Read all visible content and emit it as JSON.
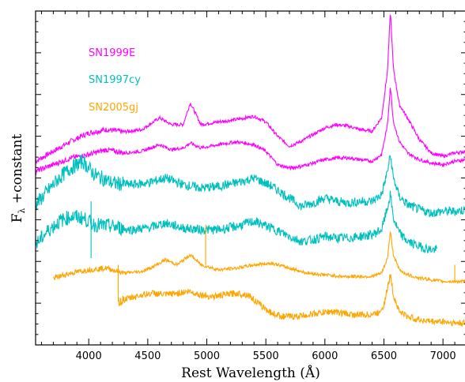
{
  "chart_data": {
    "type": "line",
    "title": "",
    "xlabel": "Rest Wavelength (Å)",
    "ylabel": "F_λ +constant",
    "ylabel_main": "F",
    "ylabel_sub": "λ",
    "ylabel_rest": " +constant",
    "xlim": [
      3550,
      7200
    ],
    "ylim": [
      0,
      1
    ],
    "xticks": [
      4000,
      4500,
      5000,
      5500,
      6000,
      6500,
      7000
    ],
    "xtick_labels": [
      "4000",
      "4500",
      "5000",
      "5500",
      "6000",
      "6500",
      "7000"
    ],
    "grid": false,
    "legend": "top-left",
    "series": [
      {
        "name": "SN1999E",
        "color": "#ff00ff",
        "x": [
          3550,
          3700,
          3850,
          4000,
          4150,
          4300,
          4450,
          4600,
          4700,
          4800,
          4860,
          4950,
          5100,
          5250,
          5400,
          5500,
          5600,
          5700,
          5800,
          5900,
          6000,
          6100,
          6200,
          6300,
          6400,
          6480,
          6530,
          6555,
          6580,
          6630,
          6700,
          6800,
          6900,
          7000,
          7100,
          7200
        ],
        "y": [
          0.55,
          0.58,
          0.61,
          0.635,
          0.645,
          0.638,
          0.645,
          0.68,
          0.66,
          0.66,
          0.725,
          0.66,
          0.668,
          0.675,
          0.685,
          0.668,
          0.625,
          0.595,
          0.61,
          0.63,
          0.65,
          0.66,
          0.655,
          0.645,
          0.64,
          0.68,
          0.82,
          1.0,
          0.83,
          0.72,
          0.68,
          0.615,
          0.575,
          0.565,
          0.575,
          0.58
        ]
      },
      {
        "name": "SN1999E",
        "color": "#ff00ff",
        "x": [
          3550,
          3700,
          3850,
          4000,
          4150,
          4300,
          4450,
          4600,
          4700,
          4800,
          4860,
          4950,
          5100,
          5250,
          5400,
          5500,
          5600,
          5700,
          5800,
          5900,
          6000,
          6100,
          6200,
          6300,
          6400,
          6480,
          6530,
          6555,
          6580,
          6630,
          6700,
          6800,
          6900,
          7000,
          7100,
          7200
        ],
        "y": [
          0.52,
          0.54,
          0.56,
          0.57,
          0.585,
          0.575,
          0.58,
          0.6,
          0.585,
          0.59,
          0.605,
          0.59,
          0.6,
          0.608,
          0.6,
          0.58,
          0.54,
          0.53,
          0.535,
          0.545,
          0.555,
          0.56,
          0.56,
          0.555,
          0.55,
          0.57,
          0.66,
          0.775,
          0.67,
          0.61,
          0.575,
          0.555,
          0.545,
          0.54,
          0.55,
          0.555
        ]
      },
      {
        "name": "SN1997cy",
        "color": "#00bfbf",
        "x": [
          3550,
          3650,
          3750,
          3850,
          3950,
          4050,
          4200,
          4350,
          4500,
          4650,
          4800,
          4950,
          5100,
          5250,
          5400,
          5550,
          5700,
          5800,
          5900,
          6000,
          6100,
          6200,
          6300,
          6400,
          6480,
          6530,
          6555,
          6580,
          6630,
          6700,
          6800,
          6900,
          7000,
          7100,
          7200
        ],
        "y": [
          0.42,
          0.46,
          0.5,
          0.53,
          0.55,
          0.51,
          0.485,
          0.48,
          0.485,
          0.5,
          0.48,
          0.47,
          0.475,
          0.485,
          0.5,
          0.475,
          0.44,
          0.415,
          0.425,
          0.44,
          0.43,
          0.425,
          0.43,
          0.43,
          0.45,
          0.52,
          0.57,
          0.5,
          0.445,
          0.42,
          0.405,
          0.395,
          0.4,
          0.4,
          0.405
        ]
      },
      {
        "name": "SN1997cy",
        "color": "#00bfbf",
        "x": [
          3550,
          3650,
          3750,
          3850,
          3950,
          4050,
          4200,
          4350,
          4500,
          4650,
          4800,
          4950,
          5100,
          5250,
          5400,
          5550,
          5700,
          5800,
          5900,
          6000,
          6100,
          6200,
          6300,
          6400,
          6480,
          6530,
          6555,
          6580,
          6630,
          6700,
          6800,
          6900,
          6950
        ],
        "y": [
          0.3,
          0.34,
          0.37,
          0.385,
          0.38,
          0.36,
          0.355,
          0.345,
          0.35,
          0.365,
          0.35,
          0.345,
          0.345,
          0.355,
          0.37,
          0.35,
          0.325,
          0.31,
          0.315,
          0.325,
          0.32,
          0.32,
          0.325,
          0.33,
          0.345,
          0.41,
          0.45,
          0.38,
          0.335,
          0.31,
          0.295,
          0.285,
          0.285
        ]
      },
      {
        "name": "SN2005gj",
        "color": "#ffa500",
        "x": [
          3700,
          3850,
          4000,
          4150,
          4300,
          4450,
          4550,
          4650,
          4750,
          4860,
          4950,
          5100,
          5250,
          5400,
          5550,
          5700,
          5850,
          6000,
          6150,
          6300,
          6400,
          6480,
          6530,
          6555,
          6580,
          6630,
          6700,
          6800,
          6900,
          7000,
          7100,
          7200
        ],
        "y": [
          0.2,
          0.215,
          0.225,
          0.23,
          0.215,
          0.22,
          0.235,
          0.255,
          0.24,
          0.27,
          0.24,
          0.225,
          0.23,
          0.24,
          0.245,
          0.23,
          0.215,
          0.21,
          0.205,
          0.205,
          0.205,
          0.215,
          0.26,
          0.34,
          0.27,
          0.225,
          0.21,
          0.2,
          0.195,
          0.19,
          0.19,
          0.19
        ]
      },
      {
        "name": "SN2005gj",
        "color": "#ffa500",
        "x": [
          4250,
          4350,
          4450,
          4550,
          4650,
          4750,
          4850,
          4950,
          5050,
          5150,
          5250,
          5350,
          5450,
          5550,
          5650,
          5750,
          5850,
          5950,
          6050,
          6150,
          6250,
          6350,
          6450,
          6500,
          6530,
          6555,
          6580,
          6630,
          6700,
          6800,
          6900,
          7000,
          7100,
          7200
        ],
        "y": [
          0.13,
          0.14,
          0.15,
          0.155,
          0.15,
          0.155,
          0.16,
          0.15,
          0.145,
          0.15,
          0.155,
          0.15,
          0.12,
          0.095,
          0.085,
          0.085,
          0.09,
          0.095,
          0.1,
          0.095,
          0.09,
          0.09,
          0.095,
          0.12,
          0.17,
          0.21,
          0.15,
          0.1,
          0.085,
          0.075,
          0.07,
          0.07,
          0.065,
          0.065
        ]
      }
    ],
    "legend_entries": [
      {
        "label": "SN1999E",
        "color": "#ff00ff"
      },
      {
        "label": "SN1997cy",
        "color": "#00bfbf"
      },
      {
        "label": "SN2005gj",
        "color": "#ffa500"
      }
    ],
    "spikes": [
      {
        "color": "#00bfbf",
        "x": 4020,
        "y_from": 0.43,
        "y_to": 0.26
      },
      {
        "color": "#ffa500",
        "x": 4990,
        "y_from": 0.24,
        "y_to": 0.36
      },
      {
        "color": "#ffa500",
        "x": 4250,
        "y_from": 0.13,
        "y_to": 0.24
      },
      {
        "color": "#ffa500",
        "x": 7100,
        "y_from": 0.19,
        "y_to": 0.24
      }
    ]
  }
}
